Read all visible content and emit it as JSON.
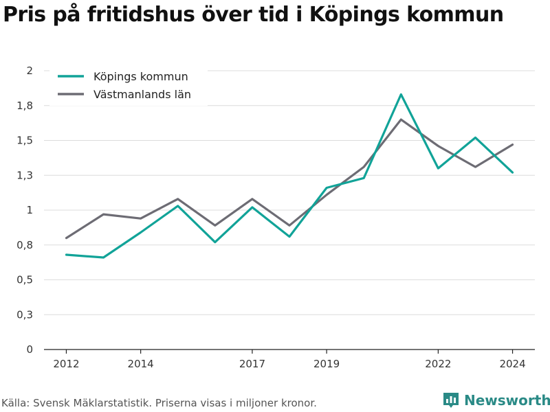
{
  "title": "Pris på fritidshus över tid i Köpings kommun",
  "source": "Källa: Svensk Mäklarstatistik. Priserna visas i miljoner kronor.",
  "brand": {
    "name": "Newsworthy",
    "icon": "newsworthy-logo-icon",
    "color": "#2a8a86"
  },
  "chart_data": {
    "type": "line",
    "x": [
      2012,
      2013,
      2014,
      2015,
      2016,
      2017,
      2018,
      2019,
      2020,
      2021,
      2022,
      2023,
      2024
    ],
    "x_ticks": [
      2012,
      2014,
      2017,
      2019,
      2022,
      2024
    ],
    "xlim": [
      2011.4,
      2024.6
    ],
    "ylim": [
      0,
      2
    ],
    "y_ticks": [
      {
        "value": 0,
        "label": "0"
      },
      {
        "value": 0.25,
        "label": "0,3"
      },
      {
        "value": 0.5,
        "label": "0,5"
      },
      {
        "value": 0.75,
        "label": "0,8"
      },
      {
        "value": 1.0,
        "label": "1"
      },
      {
        "value": 1.25,
        "label": "1,3"
      },
      {
        "value": 1.5,
        "label": "1,5"
      },
      {
        "value": 1.75,
        "label": "1,8"
      },
      {
        "value": 2.0,
        "label": "2"
      }
    ],
    "grid": true,
    "legend_position": "top-left",
    "series": [
      {
        "name": "Köpings kommun",
        "color": "#11a398",
        "values": [
          0.68,
          0.66,
          0.84,
          1.03,
          0.77,
          1.02,
          0.81,
          1.16,
          1.23,
          1.83,
          1.3,
          1.52,
          1.27
        ]
      },
      {
        "name": "Västmanlands län",
        "color": "#6d6c74",
        "values": [
          0.8,
          0.97,
          0.94,
          1.08,
          0.89,
          1.08,
          0.89,
          1.11,
          1.31,
          1.65,
          1.46,
          1.31,
          1.47
        ]
      }
    ]
  }
}
